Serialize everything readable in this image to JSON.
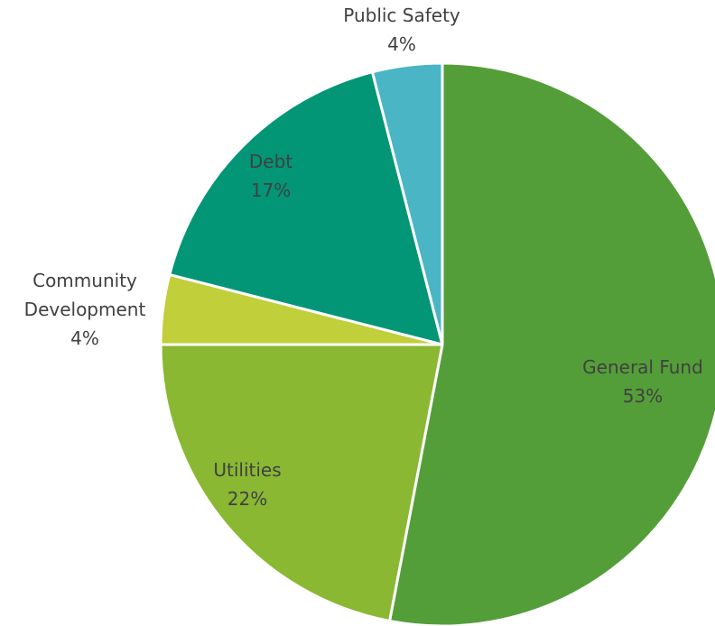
{
  "chart_data": {
    "type": "pie",
    "title": "",
    "start_angle_deg": 0,
    "direction": "clockwise",
    "slices": [
      {
        "label": [
          "General Fund"
        ],
        "value": 53,
        "value_label": "53%",
        "color": "#549e39"
      },
      {
        "label": [
          "Utilities"
        ],
        "value": 22,
        "value_label": "22%",
        "color": "#8ab833"
      },
      {
        "label": [
          "Community",
          "Development"
        ],
        "value": 4,
        "value_label": "4%",
        "color": "#c0cf3a"
      },
      {
        "label": [
          "Debt"
        ],
        "value": 17,
        "value_label": "17%",
        "color": "#029676"
      },
      {
        "label": [
          "Public Safety"
        ],
        "value": 4,
        "value_label": "4%",
        "color": "#4ab5c4"
      }
    ]
  }
}
